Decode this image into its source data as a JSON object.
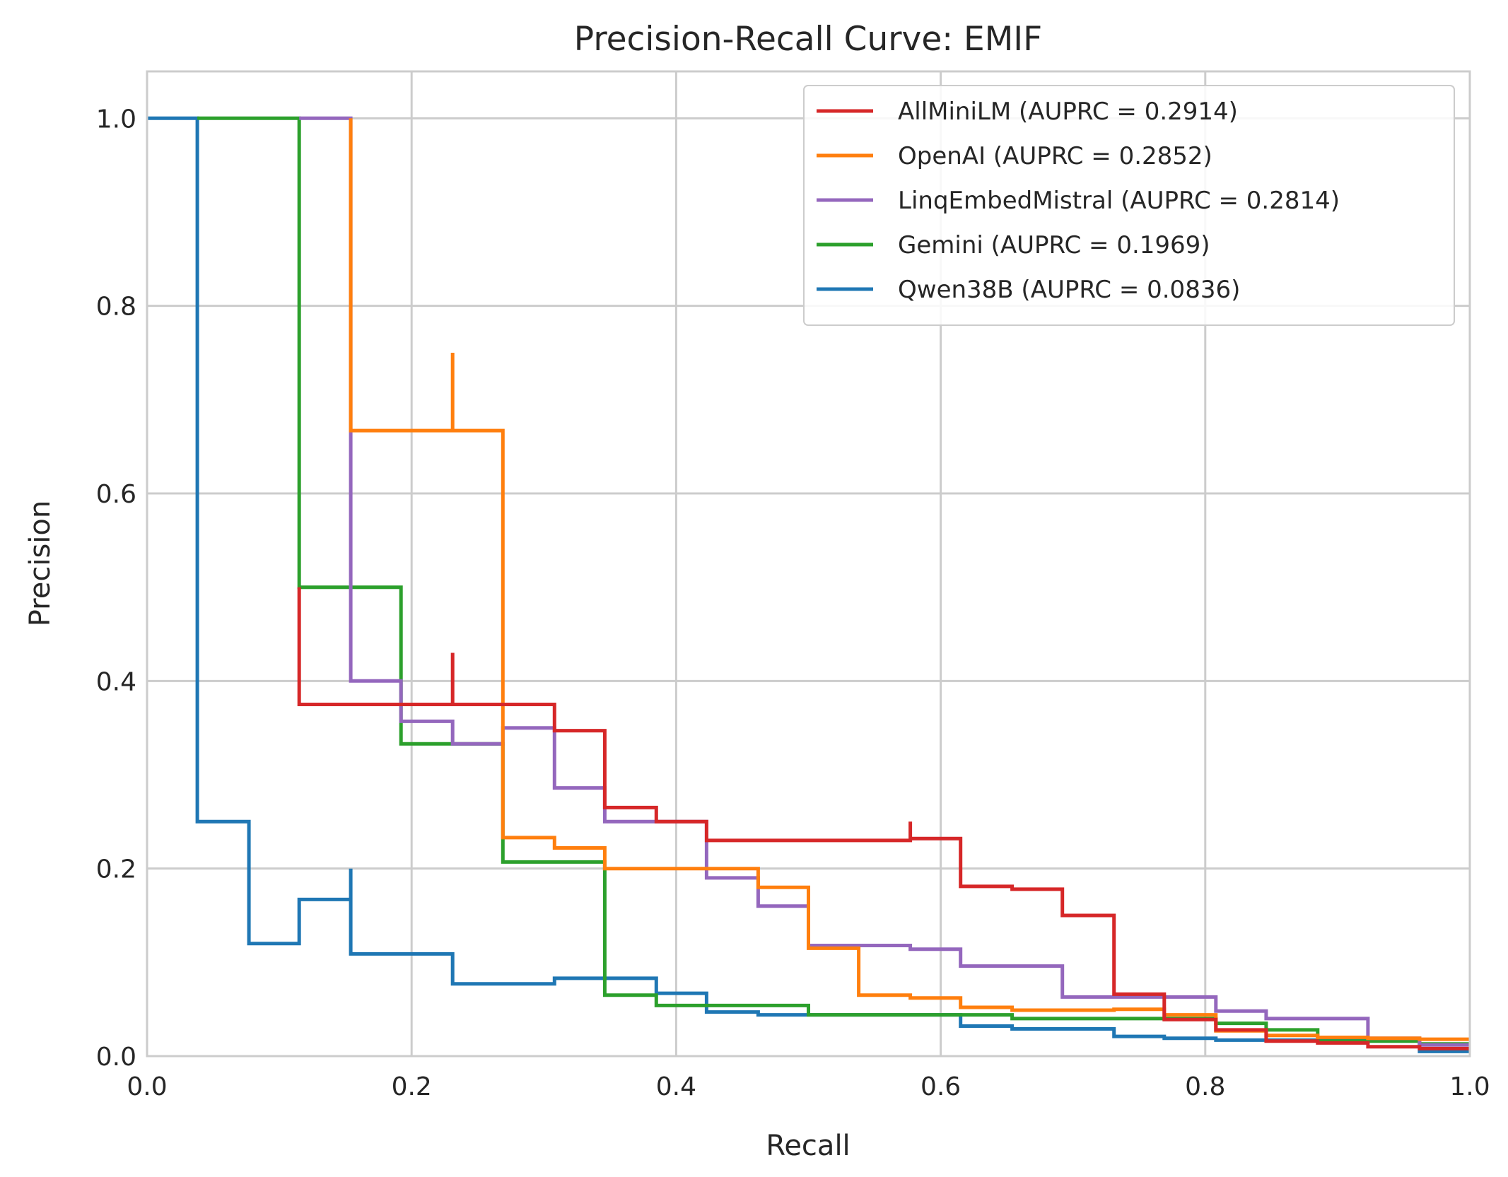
{
  "chart_data": {
    "type": "line",
    "step": true,
    "title": "Precision-Recall Curve: EMIF",
    "xlabel": "Recall",
    "ylabel": "Precision",
    "xlim": [
      0,
      1
    ],
    "ylim": [
      0,
      1.05
    ],
    "xticks": [
      0.0,
      0.2,
      0.4,
      0.6,
      0.8,
      1.0
    ],
    "xtick_labels": [
      "0.0",
      "0.2",
      "0.4",
      "0.6",
      "0.8",
      "1.0"
    ],
    "yticks": [
      0.0,
      0.2,
      0.4,
      0.6,
      0.8,
      1.0
    ],
    "ytick_labels": [
      "0.0",
      "0.2",
      "0.4",
      "0.6",
      "0.8",
      "1.0"
    ],
    "grid": true,
    "legend_position": "top-right",
    "series": [
      {
        "name": "AllMiniLM (AUPRC = 0.2914)",
        "color": "#d62728",
        "x": [
          0.115,
          0.115,
          0.231,
          0.231,
          0.231,
          0.308,
          0.308,
          0.346,
          0.346,
          0.385,
          0.385,
          0.423,
          0.423,
          0.577,
          0.577,
          0.577,
          0.615,
          0.615,
          0.654,
          0.654,
          0.692,
          0.692,
          0.731,
          0.731,
          0.769,
          0.769,
          0.808,
          0.808,
          0.846,
          0.846,
          0.885,
          0.885,
          0.923,
          0.923,
          0.962,
          0.962,
          1.0
        ],
        "y": [
          0.5,
          0.375,
          0.375,
          0.43,
          0.375,
          0.375,
          0.347,
          0.347,
          0.265,
          0.265,
          0.25,
          0.25,
          0.23,
          0.23,
          0.25,
          0.232,
          0.232,
          0.181,
          0.181,
          0.178,
          0.178,
          0.15,
          0.15,
          0.066,
          0.066,
          0.039,
          0.039,
          0.028,
          0.028,
          0.016,
          0.016,
          0.014,
          0.014,
          0.01,
          0.01,
          0.008,
          0.008
        ]
      },
      {
        "name": "OpenAI (AUPRC = 0.2852)",
        "color": "#ff7f0e",
        "x": [
          0.154,
          0.154,
          0.231,
          0.231,
          0.231,
          0.269,
          0.269,
          0.269,
          0.308,
          0.308,
          0.346,
          0.346,
          0.423,
          0.423,
          0.462,
          0.462,
          0.5,
          0.5,
          0.538,
          0.538,
          0.577,
          0.577,
          0.615,
          0.615,
          0.654,
          0.654,
          0.692,
          0.692,
          0.731,
          0.731,
          0.769,
          0.769,
          0.808,
          0.808,
          0.846,
          0.846,
          0.885,
          0.885,
          0.923,
          0.923,
          0.962,
          0.962,
          1.0
        ],
        "y": [
          1.0,
          0.667,
          0.667,
          0.75,
          0.667,
          0.667,
          0.35,
          0.233,
          0.233,
          0.222,
          0.222,
          0.2,
          0.2,
          0.2,
          0.2,
          0.18,
          0.18,
          0.115,
          0.115,
          0.065,
          0.065,
          0.062,
          0.062,
          0.052,
          0.052,
          0.049,
          0.049,
          0.049,
          0.049,
          0.05,
          0.05,
          0.044,
          0.044,
          0.027,
          0.027,
          0.022,
          0.022,
          0.02,
          0.02,
          0.019,
          0.019,
          0.018,
          0.018
        ]
      },
      {
        "name": "LinqEmbedMistral (AUPRC = 0.2814)",
        "color": "#9467bd",
        "x": [
          0.115,
          0.115,
          0.154,
          0.154,
          0.192,
          0.192,
          0.231,
          0.231,
          0.269,
          0.269,
          0.308,
          0.308,
          0.346,
          0.346,
          0.423,
          0.423,
          0.462,
          0.462,
          0.5,
          0.5,
          0.577,
          0.577,
          0.615,
          0.615,
          0.692,
          0.692,
          0.769,
          0.769,
          0.808,
          0.808,
          0.846,
          0.846,
          0.923,
          0.923,
          0.962,
          0.962,
          1.0
        ],
        "y": [
          1.0,
          1.0,
          1.0,
          0.4,
          0.4,
          0.357,
          0.357,
          0.333,
          0.333,
          0.35,
          0.35,
          0.286,
          0.286,
          0.25,
          0.25,
          0.19,
          0.19,
          0.16,
          0.16,
          0.118,
          0.118,
          0.114,
          0.114,
          0.096,
          0.096,
          0.063,
          0.063,
          0.063,
          0.063,
          0.048,
          0.048,
          0.04,
          0.04,
          0.019,
          0.019,
          0.012,
          0.012
        ]
      },
      {
        "name": "Gemini (AUPRC = 0.1969)",
        "color": "#2ca02c",
        "x": [
          0.038,
          0.038,
          0.115,
          0.115,
          0.192,
          0.192,
          0.269,
          0.269,
          0.346,
          0.346,
          0.385,
          0.385,
          0.5,
          0.5,
          0.654,
          0.654,
          0.808,
          0.808,
          0.846,
          0.846,
          0.885,
          0.885,
          0.962,
          0.962,
          1.0
        ],
        "y": [
          1.0,
          1.0,
          1.0,
          0.5,
          0.5,
          0.333,
          0.333,
          0.207,
          0.207,
          0.065,
          0.065,
          0.054,
          0.054,
          0.044,
          0.044,
          0.04,
          0.04,
          0.035,
          0.035,
          0.028,
          0.028,
          0.016,
          0.016,
          0.013,
          0.013
        ]
      },
      {
        "name": "Qwen38B (AUPRC = 0.0836)",
        "color": "#1f77b4",
        "x": [
          0.0,
          0.038,
          0.038,
          0.077,
          0.077,
          0.115,
          0.115,
          0.154,
          0.154,
          0.154,
          0.231,
          0.231,
          0.308,
          0.308,
          0.385,
          0.385,
          0.423,
          0.423,
          0.462,
          0.462,
          0.615,
          0.615,
          0.654,
          0.654,
          0.731,
          0.731,
          0.769,
          0.769,
          0.808,
          0.808,
          0.962,
          0.962,
          1.0
        ],
        "y": [
          1.0,
          1.0,
          0.25,
          0.25,
          0.12,
          0.12,
          0.167,
          0.167,
          0.2,
          0.109,
          0.109,
          0.077,
          0.077,
          0.083,
          0.083,
          0.067,
          0.067,
          0.047,
          0.047,
          0.044,
          0.044,
          0.032,
          0.032,
          0.029,
          0.029,
          0.021,
          0.021,
          0.019,
          0.019,
          0.017,
          0.017,
          0.005,
          0.005
        ]
      }
    ]
  }
}
